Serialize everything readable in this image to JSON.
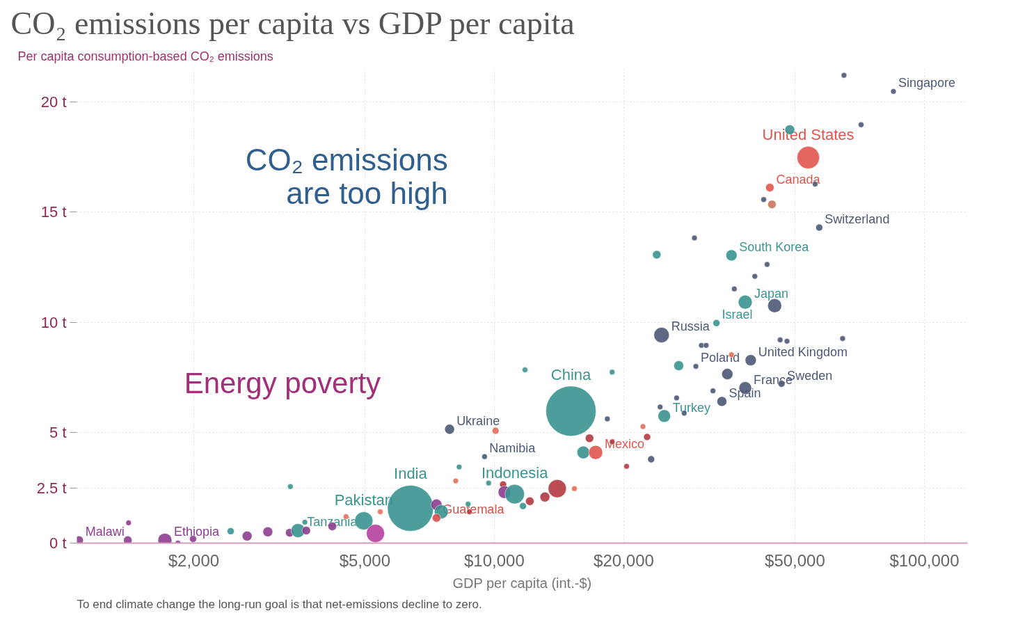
{
  "chart_data": {
    "type": "bubble",
    "title": "CO₂ emissions per capita vs GDP per capita",
    "ylabel": "Per capita consumption-based CO₂ emissions",
    "xlabel": "GDP per capita (int.-$)",
    "log": "x",
    "grid": true,
    "xlim": [
      1070,
      126000
    ],
    "ylim": [
      0,
      21.6
    ],
    "xticks": [
      {
        "value": 2000,
        "label": "$2,000"
      },
      {
        "value": 5000,
        "label": "$5,000"
      },
      {
        "value": 10000,
        "label": "$10,000"
      },
      {
        "value": 20000,
        "label": "$20,000"
      },
      {
        "value": 50000,
        "label": "$50,000"
      },
      {
        "value": 100000,
        "label": "$100,000"
      }
    ],
    "yticks": [
      {
        "value": 0,
        "label": "0 t"
      },
      {
        "value": 2.5,
        "label": "2.5 t"
      },
      {
        "value": 5,
        "label": "5 t"
      },
      {
        "value": 10,
        "label": "10 t"
      },
      {
        "value": 15,
        "label": "15 t"
      },
      {
        "value": 20,
        "label": "20 t"
      }
    ],
    "x": [
      1083,
      1411,
      1405,
      1714,
      1838,
      1993,
      2438,
      2662,
      2974,
      3344,
      3496,
      3626,
      3653,
      3356,
      4200,
      4520,
      4972,
      5292,
      6383,
      5430,
      7338,
      7530,
      7338,
      7870,
      8284,
      8134,
      8690,
      8754,
      9492,
      9702,
      10066,
      10482,
      10560,
      11154,
      11658,
      11786,
      12092,
      13112,
      14006,
      15354,
      15074,
      16646,
      16104,
      17206,
      18312,
      18790,
      20300,
      18790,
      22160,
      22660,
      23160,
      23860,
      24300,
      24840,
      26540,
      26840,
      24480,
      27640,
      29420,
      29200,
      30300,
      31080,
      32240,
      32840,
      33820,
      34820,
      35600,
      35600,
      36140,
      38320,
      38320,
      39460,
      40340,
      42300,
      43080,
      43720,
      44220,
      44860,
      46200,
      47920,
      46540,
      48640,
      53700,
      55720,
      56960,
      64540,
      65020,
      71260,
      84720
    ],
    "values": [
      0.13,
      0.92,
      0.13,
      0.13,
      0,
      0.19,
      0.54,
      0.32,
      0.51,
      0.47,
      0.57,
      0.95,
      0.57,
      2.56,
      0.76,
      1.2,
      1.01,
      0.44,
      1.58,
      1.42,
      1.74,
      1.42,
      1.14,
      5.16,
      3.45,
      2.82,
      1.77,
      1.42,
      3.92,
      2.72,
      5.09,
      2.66,
      2.31,
      2.22,
      1.68,
      7.85,
      1.9,
      2.09,
      2.47,
      2.47,
      5.98,
      4.75,
      4.11,
      4.11,
      5.63,
      4.59,
      3.48,
      7.75,
      5.28,
      4.81,
      3.8,
      13.07,
      6.17,
      5.76,
      6.58,
      8.04,
      9.43,
      5.89,
      8.01,
      13.83,
      8.96,
      8.96,
      6.9,
      9.97,
      6.42,
      7.66,
      8.54,
      13.04,
      11.52,
      10.92,
      7.03,
      8.29,
      12.09,
      15.57,
      12.63,
      16.11,
      15.35,
      10.76,
      9.21,
      9.15,
      7.22,
      18.73,
      17.47,
      16.27,
      14.3,
      9.27,
      21.2,
      18.96,
      20.47
    ],
    "sizes": [
      0.028,
      0.012,
      0.028,
      0.077,
      0.012,
      0.019,
      0.019,
      0.038,
      0.038,
      0.028,
      0.077,
      0.012,
      0.028,
      0.012,
      0.028,
      0.012,
      0.13,
      0.13,
      0.84,
      0.012,
      0.049,
      0.077,
      0.028,
      0.038,
      0.012,
      0.012,
      0.012,
      0.012,
      0.012,
      0.012,
      0.019,
      0.019,
      0.063,
      0.15,
      0.019,
      0.012,
      0.028,
      0.038,
      0.13,
      0.012,
      1,
      0.028,
      0.063,
      0.077,
      0.012,
      0.012,
      0.012,
      0.012,
      0.012,
      0.019,
      0.019,
      0.028,
      0.012,
      0.063,
      0.012,
      0.038,
      0.093,
      0.012,
      0.012,
      0.012,
      0.012,
      0.012,
      0.012,
      0.019,
      0.038,
      0.049,
      0.012,
      0.049,
      0.012,
      0.077,
      0.063,
      0.049,
      0.012,
      0.012,
      0.012,
      0.028,
      0.028,
      0.077,
      0.012,
      0.012,
      0.019,
      0.038,
      0.2,
      0.012,
      0.019,
      0.012,
      0.012,
      0.012,
      0.012
    ],
    "colors": [
      "#8c3d8e",
      "#8c3d8e",
      "#8c3d8e",
      "#8c3d8e",
      "#8c3d8e",
      "#8c3d8e",
      "#3a948f",
      "#8c3d8e",
      "#8c3d8e",
      "#8c3d8e",
      "#3a948f",
      "#3a948f",
      "#8c3d8e",
      "#3a948f",
      "#8c3d8e",
      "#e0705a",
      "#3a948f",
      "#b5409f",
      "#3a948f",
      "#e0705a",
      "#8c3d8e",
      "#3a948f",
      "#d8504a",
      "#4d5874",
      "#3a948f",
      "#e0705a",
      "#3a948f",
      "#b23a40",
      "#4d5874",
      "#3a948f",
      "#e0705a",
      "#b23a40",
      "#8c3d8e",
      "#3a948f",
      "#3a948f",
      "#3a948f",
      "#b23a40",
      "#b23a40",
      "#b23a40",
      "#e0705a",
      "#3a948f",
      "#b23a40",
      "#3a948f",
      "#e0564f",
      "#4d5874",
      "#b23a40",
      "#b23a40",
      "#3a948f",
      "#e0705a",
      "#b23a40",
      "#4d5874",
      "#3a948f",
      "#4d5874",
      "#3a948f",
      "#4d5874",
      "#3a948f",
      "#4d5874",
      "#4d5874",
      "#4d5874",
      "#4d5874",
      "#4d5874",
      "#4d5874",
      "#4d5874",
      "#3a948f",
      "#4d5874",
      "#4d5874",
      "#e0705a",
      "#3a948f",
      "#4d5874",
      "#3a948f",
      "#4d5874",
      "#4d5874",
      "#4d5874",
      "#4d5874",
      "#4d5874",
      "#e0564f",
      "#c4795c",
      "#4d5874",
      "#4d5874",
      "#4d5874",
      "#4d5874",
      "#3a948f",
      "#e0564f",
      "#4d5874",
      "#4d5874",
      "#4d5874",
      "#4d5874",
      "#4d5874",
      "#4d5874"
    ],
    "annotations": [
      "CO₂ emissions\nare too high",
      "Energy poverty",
      "To end climate change the long-run goal is that net-emissions decline to zero.",
      {
        "text": "Malawi",
        "x": 1083,
        "y": 0.13
      },
      {
        "text": "Ethiopia",
        "x": 1714,
        "y": 0.13
      },
      {
        "text": "Tanzania",
        "x": 3496,
        "y": 0.57
      },
      {
        "text": "Pakistan",
        "x": 4972,
        "y": 1.01
      },
      {
        "text": "India",
        "x": 6383,
        "y": 1.58
      },
      {
        "text": "Guatemala",
        "x": 7338,
        "y": 1.14
      },
      {
        "text": "Ukraine",
        "x": 7870,
        "y": 5.16
      },
      {
        "text": "Namibia",
        "x": 9492,
        "y": 3.92
      },
      {
        "text": "Indonesia",
        "x": 11154,
        "y": 2.22
      },
      {
        "text": "China",
        "x": 15074,
        "y": 5.98
      },
      {
        "text": "Mexico",
        "x": 17206,
        "y": 4.11
      },
      {
        "text": "Turkey",
        "x": 24840,
        "y": 5.76
      },
      {
        "text": "Russia",
        "x": 24480,
        "y": 9.43
      },
      {
        "text": "Poland",
        "x": 29420,
        "y": 8.01
      },
      {
        "text": "Israel",
        "x": 32840,
        "y": 9.97
      },
      {
        "text": "Spain",
        "x": 33820,
        "y": 6.42
      },
      {
        "text": "France",
        "x": 38320,
        "y": 7.03
      },
      {
        "text": "United Kingdom",
        "x": 39460,
        "y": 8.29
      },
      {
        "text": "Japan",
        "x": 38320,
        "y": 10.92
      },
      {
        "text": "South Korea",
        "x": 35600,
        "y": 13.04
      },
      {
        "text": "Sweden",
        "x": 46540,
        "y": 7.22
      },
      {
        "text": "Canada",
        "x": 43720,
        "y": 16.11
      },
      {
        "text": "United States",
        "x": 53700,
        "y": 17.47
      },
      {
        "text": "Switzerland",
        "x": 56960,
        "y": 14.3
      },
      {
        "text": "Singapore",
        "x": 84720,
        "y": 20.47
      }
    ]
  }
}
